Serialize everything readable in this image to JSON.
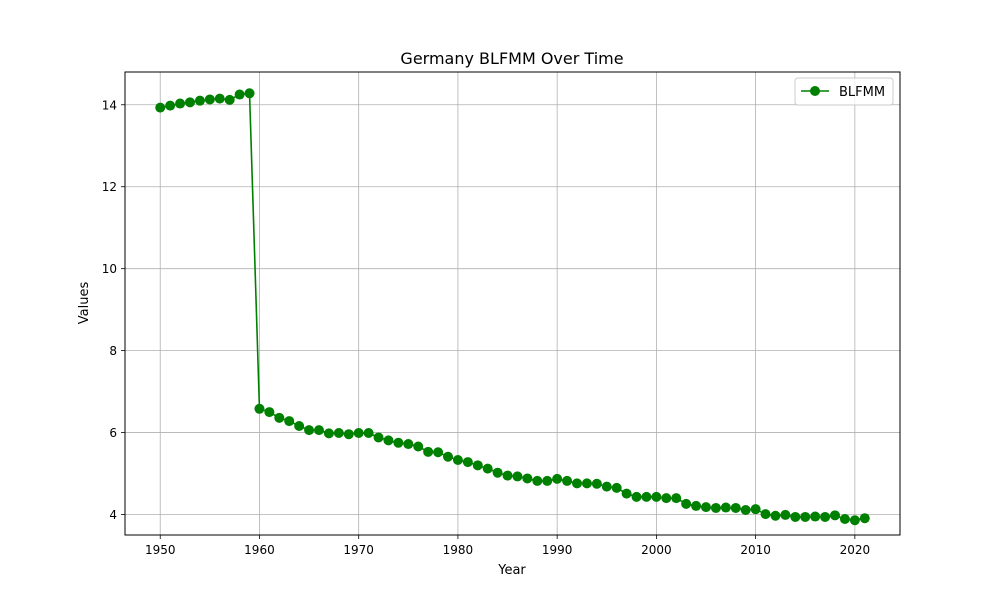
{
  "chart_data": {
    "type": "line",
    "title": "Germany BLFMM Over Time",
    "xlabel": "Year",
    "ylabel": "Values",
    "xlim": [
      1946.45,
      2024.55
    ],
    "ylim": [
      3.5,
      14.8
    ],
    "xticks": [
      1950,
      1960,
      1970,
      1980,
      1990,
      2000,
      2010,
      2020
    ],
    "yticks": [
      4,
      6,
      8,
      10,
      12,
      14
    ],
    "grid": true,
    "legend_position": "top-right",
    "series": [
      {
        "name": "BLFMM",
        "color": "#008000",
        "marker": "circle",
        "x": [
          1950,
          1951,
          1952,
          1953,
          1954,
          1955,
          1956,
          1957,
          1958,
          1959,
          1960,
          1961,
          1962,
          1963,
          1964,
          1965,
          1966,
          1967,
          1968,
          1969,
          1970,
          1971,
          1972,
          1973,
          1974,
          1975,
          1976,
          1977,
          1978,
          1979,
          1980,
          1981,
          1982,
          1983,
          1984,
          1985,
          1986,
          1987,
          1988,
          1989,
          1990,
          1991,
          1992,
          1993,
          1994,
          1995,
          1996,
          1997,
          1998,
          1999,
          2000,
          2001,
          2002,
          2003,
          2004,
          2005,
          2006,
          2007,
          2008,
          2009,
          2010,
          2011,
          2012,
          2013,
          2014,
          2015,
          2016,
          2017,
          2018,
          2019,
          2020,
          2021
        ],
        "y": [
          13.93,
          13.98,
          14.03,
          14.06,
          14.1,
          14.13,
          14.15,
          14.12,
          14.25,
          14.28,
          6.58,
          6.5,
          6.36,
          6.28,
          6.16,
          6.06,
          6.06,
          5.98,
          5.99,
          5.96,
          5.99,
          5.99,
          5.88,
          5.81,
          5.75,
          5.72,
          5.66,
          5.53,
          5.52,
          5.41,
          5.33,
          5.28,
          5.2,
          5.12,
          5.02,
          4.95,
          4.93,
          4.88,
          4.82,
          4.82,
          4.87,
          4.82,
          4.76,
          4.76,
          4.75,
          4.68,
          4.65,
          4.51,
          4.43,
          4.43,
          4.43,
          4.4,
          4.4,
          4.26,
          4.21,
          4.18,
          4.16,
          4.17,
          4.16,
          4.11,
          4.13,
          4.01,
          3.97,
          3.99,
          3.94,
          3.94,
          3.95,
          3.94,
          3.98,
          3.89,
          3.86,
          3.91
        ]
      }
    ]
  }
}
